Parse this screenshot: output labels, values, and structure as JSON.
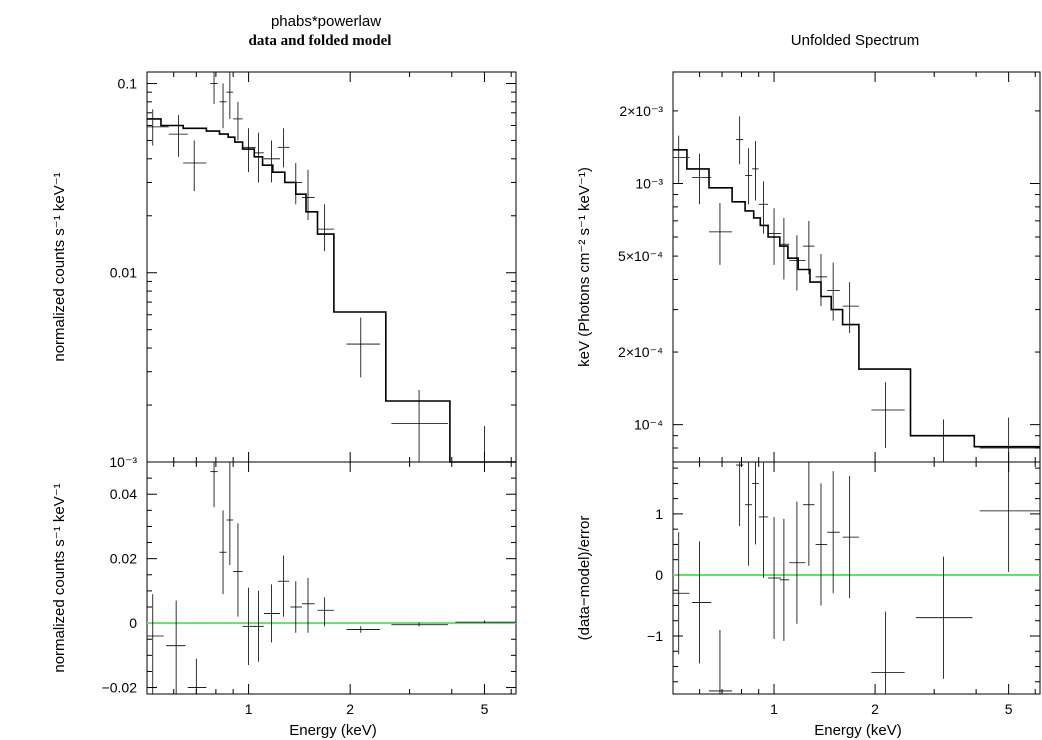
{
  "chart_data": [
    {
      "type": "line",
      "panel": "top-left",
      "title": "phabs*powerlaw",
      "subtitle": "data and folded model",
      "xlabel": "",
      "ylabel": "normalized counts s⁻¹ keV⁻¹",
      "xscale": "log",
      "yscale": "log",
      "xlim": [
        0.5,
        6.2
      ],
      "ylim": [
        0.001,
        0.115
      ],
      "y_ticks": [
        {
          "value": 0.1,
          "label": "0.1"
        },
        {
          "value": 0.01,
          "label": "0.01"
        },
        {
          "value": 0.001,
          "label": "10⁻³"
        }
      ],
      "data": [
        {
          "x": 0.52,
          "xlo": 0.5,
          "xhi": 0.58,
          "y": 0.059,
          "ylo": 0.047,
          "yhi": 0.073
        },
        {
          "x": 0.62,
          "xlo": 0.58,
          "xhi": 0.66,
          "y": 0.054,
          "ylo": 0.041,
          "yhi": 0.068
        },
        {
          "x": 0.69,
          "xlo": 0.64,
          "xhi": 0.75,
          "y": 0.038,
          "ylo": 0.027,
          "yhi": 0.05
        },
        {
          "x": 0.79,
          "xlo": 0.77,
          "xhi": 0.81,
          "y": 0.1,
          "ylo": 0.078,
          "yhi": 0.115
        },
        {
          "x": 0.84,
          "xlo": 0.82,
          "xhi": 0.86,
          "y": 0.08,
          "ylo": 0.058,
          "yhi": 0.1
        },
        {
          "x": 0.88,
          "xlo": 0.86,
          "xhi": 0.9,
          "y": 0.09,
          "ylo": 0.065,
          "yhi": 0.115
        },
        {
          "x": 0.93,
          "xlo": 0.9,
          "xhi": 0.96,
          "y": 0.065,
          "ylo": 0.05,
          "yhi": 0.08
        },
        {
          "x": 1.0,
          "xlo": 0.96,
          "xhi": 1.05,
          "y": 0.046,
          "ylo": 0.034,
          "yhi": 0.058
        },
        {
          "x": 1.07,
          "xlo": 1.04,
          "xhi": 1.11,
          "y": 0.043,
          "ylo": 0.03,
          "yhi": 0.055
        },
        {
          "x": 1.17,
          "xlo": 1.11,
          "xhi": 1.24,
          "y": 0.04,
          "ylo": 0.03,
          "yhi": 0.05
        },
        {
          "x": 1.27,
          "xlo": 1.22,
          "xhi": 1.32,
          "y": 0.046,
          "ylo": 0.036,
          "yhi": 0.058
        },
        {
          "x": 1.38,
          "xlo": 1.33,
          "xhi": 1.44,
          "y": 0.03,
          "ylo": 0.023,
          "yhi": 0.038
        },
        {
          "x": 1.5,
          "xlo": 1.44,
          "xhi": 1.57,
          "y": 0.025,
          "ylo": 0.019,
          "yhi": 0.035
        },
        {
          "x": 1.68,
          "xlo": 1.6,
          "xhi": 1.79,
          "y": 0.017,
          "ylo": 0.013,
          "yhi": 0.023
        },
        {
          "x": 2.15,
          "xlo": 1.95,
          "xhi": 2.45,
          "y": 0.0042,
          "ylo": 0.0028,
          "yhi": 0.0058
        },
        {
          "x": 3.2,
          "xlo": 2.65,
          "xhi": 3.9,
          "y": 0.0016,
          "ylo": 0.0009,
          "yhi": 0.0024
        },
        {
          "x": 5.0,
          "xlo": 4.1,
          "xhi": 6.2,
          "y": 0.001,
          "ylo": 0.001,
          "yhi": 0.00155
        }
      ],
      "model_steps": [
        {
          "x0": 0.5,
          "x1": 0.55,
          "y": 0.065
        },
        {
          "x0": 0.55,
          "x1": 0.64,
          "y": 0.06
        },
        {
          "x0": 0.64,
          "x1": 0.75,
          "y": 0.058
        },
        {
          "x0": 0.75,
          "x1": 0.82,
          "y": 0.056
        },
        {
          "x0": 0.82,
          "x1": 0.87,
          "y": 0.054
        },
        {
          "x0": 0.87,
          "x1": 0.91,
          "y": 0.052
        },
        {
          "x0": 0.91,
          "x1": 0.96,
          "y": 0.049
        },
        {
          "x0": 0.96,
          "x1": 1.04,
          "y": 0.045
        },
        {
          "x0": 1.04,
          "x1": 1.1,
          "y": 0.041
        },
        {
          "x0": 1.1,
          "x1": 1.18,
          "y": 0.037
        },
        {
          "x0": 1.18,
          "x1": 1.28,
          "y": 0.034
        },
        {
          "x0": 1.28,
          "x1": 1.38,
          "y": 0.03
        },
        {
          "x0": 1.38,
          "x1": 1.48,
          "y": 0.026
        },
        {
          "x0": 1.48,
          "x1": 1.6,
          "y": 0.021
        },
        {
          "x0": 1.6,
          "x1": 1.79,
          "y": 0.016
        },
        {
          "x0": 1.79,
          "x1": 2.55,
          "y": 0.0062
        },
        {
          "x0": 2.55,
          "x1": 3.95,
          "y": 0.0021
        },
        {
          "x0": 3.95,
          "x1": 6.2,
          "y": 0.001
        }
      ]
    },
    {
      "type": "line",
      "panel": "bottom-left",
      "xlabel": "Energy (keV)",
      "ylabel": "normalized counts s⁻¹ keV⁻¹",
      "xscale": "log",
      "yscale": "linear",
      "xlim": [
        0.5,
        6.2
      ],
      "ylim": [
        -0.022,
        0.05
      ],
      "x_ticks": [
        {
          "value": 1,
          "label": "1"
        },
        {
          "value": 2,
          "label": "2"
        },
        {
          "value": 5,
          "label": "5"
        }
      ],
      "y_ticks": [
        {
          "value": 0.04,
          "label": "0.04"
        },
        {
          "value": 0.02,
          "label": "0.02"
        },
        {
          "value": 0,
          "label": "0"
        },
        {
          "value": -0.02,
          "label": "−0.02"
        }
      ],
      "zero_line": 0,
      "data": [
        {
          "x": 0.52,
          "xlo": 0.5,
          "xhi": 0.56,
          "y": -0.004,
          "ylo": -0.022,
          "yhi": 0.009
        },
        {
          "x": 0.61,
          "xlo": 0.57,
          "xhi": 0.65,
          "y": -0.007,
          "ylo": -0.022,
          "yhi": 0.007
        },
        {
          "x": 0.7,
          "xlo": 0.66,
          "xhi": 0.75,
          "y": -0.02,
          "ylo": -0.022,
          "yhi": -0.011
        },
        {
          "x": 0.79,
          "xlo": 0.77,
          "xhi": 0.81,
          "y": 0.047,
          "ylo": 0.036,
          "yhi": 0.05
        },
        {
          "x": 0.84,
          "xlo": 0.82,
          "xhi": 0.86,
          "y": 0.022,
          "ylo": 0.009,
          "yhi": 0.035
        },
        {
          "x": 0.88,
          "xlo": 0.86,
          "xhi": 0.9,
          "y": 0.032,
          "ylo": 0.018,
          "yhi": 0.05
        },
        {
          "x": 0.93,
          "xlo": 0.9,
          "xhi": 0.96,
          "y": 0.016,
          "ylo": 0.002,
          "yhi": 0.031
        },
        {
          "x": 1.0,
          "xlo": 0.96,
          "xhi": 1.05,
          "y": -0.001,
          "ylo": -0.013,
          "yhi": 0.011
        },
        {
          "x": 1.07,
          "xlo": 1.04,
          "xhi": 1.11,
          "y": -0.001,
          "ylo": -0.012,
          "yhi": 0.01
        },
        {
          "x": 1.17,
          "xlo": 1.11,
          "xhi": 1.24,
          "y": 0.003,
          "ylo": -0.006,
          "yhi": 0.012
        },
        {
          "x": 1.27,
          "xlo": 1.22,
          "xhi": 1.32,
          "y": 0.013,
          "ylo": 0.002,
          "yhi": 0.021
        },
        {
          "x": 1.38,
          "xlo": 1.33,
          "xhi": 1.44,
          "y": 0.005,
          "ylo": -0.003,
          "yhi": 0.013
        },
        {
          "x": 1.5,
          "xlo": 1.44,
          "xhi": 1.57,
          "y": 0.006,
          "ylo": -0.003,
          "yhi": 0.014
        },
        {
          "x": 1.68,
          "xlo": 1.6,
          "xhi": 1.79,
          "y": 0.004,
          "ylo": -0.001,
          "yhi": 0.008
        },
        {
          "x": 2.15,
          "xlo": 1.95,
          "xhi": 2.45,
          "y": -0.002,
          "ylo": -0.003,
          "yhi": -0.001
        },
        {
          "x": 3.2,
          "xlo": 2.65,
          "xhi": 3.9,
          "y": -0.0005,
          "ylo": -0.001,
          "yhi": 0.0002
        },
        {
          "x": 5.0,
          "xlo": 4.1,
          "xhi": 6.2,
          "y": 0.0003,
          "ylo": 0.0,
          "yhi": 0.0008
        }
      ]
    },
    {
      "type": "line",
      "panel": "top-right",
      "title": "Unfolded Spectrum",
      "xlabel": "",
      "ylabel": "keV (Photons cm⁻² s⁻¹ keV⁻¹)",
      "xscale": "log",
      "yscale": "log",
      "xlim": [
        0.5,
        6.2
      ],
      "ylim": [
        7e-05,
        0.0029
      ],
      "y_ticks": [
        {
          "value": 0.002,
          "label": "2×10⁻³"
        },
        {
          "value": 0.001,
          "label": "10⁻³"
        },
        {
          "value": 0.0005,
          "label": "5×10⁻⁴"
        },
        {
          "value": 0.0002,
          "label": "2×10⁻⁴"
        },
        {
          "value": 0.0001,
          "label": "10⁻⁴"
        }
      ],
      "data": [
        {
          "x": 0.52,
          "xlo": 0.5,
          "xhi": 0.56,
          "y": 0.00128,
          "ylo": 0.001,
          "yhi": 0.00158
        },
        {
          "x": 0.6,
          "xlo": 0.57,
          "xhi": 0.65,
          "y": 0.00106,
          "ylo": 0.00082,
          "yhi": 0.00133
        },
        {
          "x": 0.69,
          "xlo": 0.64,
          "xhi": 0.75,
          "y": 0.00063,
          "ylo": 0.00046,
          "yhi": 0.00083
        },
        {
          "x": 0.79,
          "xlo": 0.77,
          "xhi": 0.81,
          "y": 0.00152,
          "ylo": 0.0012,
          "yhi": 0.0019
        },
        {
          "x": 0.84,
          "xlo": 0.82,
          "xhi": 0.86,
          "y": 0.00108,
          "ylo": 0.00082,
          "yhi": 0.0014
        },
        {
          "x": 0.88,
          "xlo": 0.86,
          "xhi": 0.9,
          "y": 0.00115,
          "ylo": 0.00085,
          "yhi": 0.0015
        },
        {
          "x": 0.93,
          "xlo": 0.9,
          "xhi": 0.96,
          "y": 0.00082,
          "ylo": 0.00062,
          "yhi": 0.00102
        },
        {
          "x": 1.0,
          "xlo": 0.96,
          "xhi": 1.05,
          "y": 0.00062,
          "ylo": 0.00046,
          "yhi": 0.00079
        },
        {
          "x": 1.07,
          "xlo": 1.04,
          "xhi": 1.11,
          "y": 0.00056,
          "ylo": 0.0004,
          "yhi": 0.00072
        },
        {
          "x": 1.17,
          "xlo": 1.11,
          "xhi": 1.24,
          "y": 0.00048,
          "ylo": 0.00036,
          "yhi": 0.00061
        },
        {
          "x": 1.27,
          "xlo": 1.22,
          "xhi": 1.32,
          "y": 0.00055,
          "ylo": 0.00042,
          "yhi": 0.0007
        },
        {
          "x": 1.38,
          "xlo": 1.33,
          "xhi": 1.44,
          "y": 0.00041,
          "ylo": 0.00031,
          "yhi": 0.00051
        },
        {
          "x": 1.5,
          "xlo": 1.44,
          "xhi": 1.57,
          "y": 0.00036,
          "ylo": 0.00027,
          "yhi": 0.00047
        },
        {
          "x": 1.68,
          "xlo": 1.6,
          "xhi": 1.79,
          "y": 0.00031,
          "ylo": 0.00024,
          "yhi": 0.00039
        },
        {
          "x": 2.15,
          "xlo": 1.95,
          "xhi": 2.45,
          "y": 0.000115,
          "ylo": 8e-05,
          "yhi": 0.00015
        },
        {
          "x": 3.2,
          "xlo": 2.65,
          "xhi": 3.9,
          "y": 9e-05,
          "ylo": 7e-05,
          "yhi": 0.000105
        },
        {
          "x": 5.0,
          "xlo": 4.1,
          "xhi": 6.2,
          "y": 8e-05,
          "ylo": 7e-05,
          "yhi": 0.000107
        }
      ],
      "model_steps": [
        {
          "x0": 0.5,
          "x1": 0.55,
          "y": 0.00138
        },
        {
          "x0": 0.55,
          "x1": 0.64,
          "y": 0.00115
        },
        {
          "x0": 0.64,
          "x1": 0.75,
          "y": 0.00096
        },
        {
          "x0": 0.75,
          "x1": 0.82,
          "y": 0.00084
        },
        {
          "x0": 0.82,
          "x1": 0.87,
          "y": 0.00077
        },
        {
          "x0": 0.87,
          "x1": 0.91,
          "y": 0.00072
        },
        {
          "x0": 0.91,
          "x1": 0.96,
          "y": 0.00067
        },
        {
          "x0": 0.96,
          "x1": 1.04,
          "y": 0.0006
        },
        {
          "x0": 1.04,
          "x1": 1.1,
          "y": 0.00055
        },
        {
          "x0": 1.1,
          "x1": 1.18,
          "y": 0.00049
        },
        {
          "x0": 1.18,
          "x1": 1.28,
          "y": 0.00044
        },
        {
          "x0": 1.28,
          "x1": 1.38,
          "y": 0.00039
        },
        {
          "x0": 1.38,
          "x1": 1.48,
          "y": 0.00034
        },
        {
          "x0": 1.48,
          "x1": 1.6,
          "y": 0.0003
        },
        {
          "x0": 1.6,
          "x1": 1.79,
          "y": 0.00026
        },
        {
          "x0": 1.79,
          "x1": 2.55,
          "y": 0.00017
        },
        {
          "x0": 2.55,
          "x1": 3.95,
          "y": 9e-05
        },
        {
          "x0": 3.95,
          "x1": 6.2,
          "y": 8.1e-05
        }
      ]
    },
    {
      "type": "line",
      "panel": "bottom-right",
      "xlabel": "Energy (keV)",
      "ylabel": "(data−model)/error",
      "xscale": "log",
      "yscale": "linear",
      "xlim": [
        0.5,
        6.2
      ],
      "ylim": [
        -1.95,
        1.85
      ],
      "x_ticks": [
        {
          "value": 1,
          "label": "1"
        },
        {
          "value": 2,
          "label": "2"
        },
        {
          "value": 5,
          "label": "5"
        }
      ],
      "y_ticks": [
        {
          "value": 1,
          "label": "1"
        },
        {
          "value": 0,
          "label": "0"
        },
        {
          "value": -1,
          "label": "−1"
        }
      ],
      "zero_line": 0,
      "data": [
        {
          "x": 0.52,
          "xlo": 0.5,
          "xhi": 0.56,
          "y": -0.3,
          "ylo": -1.3,
          "yhi": 0.7
        },
        {
          "x": 0.6,
          "xlo": 0.57,
          "xhi": 0.65,
          "y": -0.45,
          "ylo": -1.45,
          "yhi": 0.55
        },
        {
          "x": 0.69,
          "xlo": 0.64,
          "xhi": 0.75,
          "y": -1.9,
          "ylo": -1.95,
          "yhi": -0.9
        },
        {
          "x": 0.79,
          "xlo": 0.77,
          "xhi": 0.81,
          "y": 1.8,
          "ylo": 0.8,
          "yhi": 1.85
        },
        {
          "x": 0.84,
          "xlo": 0.82,
          "xhi": 0.86,
          "y": 1.15,
          "ylo": 0.15,
          "yhi": 1.85
        },
        {
          "x": 0.88,
          "xlo": 0.86,
          "xhi": 0.9,
          "y": 1.5,
          "ylo": 0.5,
          "yhi": 1.85
        },
        {
          "x": 0.93,
          "xlo": 0.9,
          "xhi": 0.96,
          "y": 0.95,
          "ylo": -0.05,
          "yhi": 1.85
        },
        {
          "x": 1.0,
          "xlo": 0.96,
          "xhi": 1.05,
          "y": -0.05,
          "ylo": -1.05,
          "yhi": 0.95
        },
        {
          "x": 1.07,
          "xlo": 1.04,
          "xhi": 1.11,
          "y": -0.08,
          "ylo": -1.08,
          "yhi": 0.92
        },
        {
          "x": 1.17,
          "xlo": 1.11,
          "xhi": 1.24,
          "y": 0.2,
          "ylo": -0.8,
          "yhi": 1.2
        },
        {
          "x": 1.27,
          "xlo": 1.22,
          "xhi": 1.32,
          "y": 1.15,
          "ylo": 0.15,
          "yhi": 1.85
        },
        {
          "x": 1.38,
          "xlo": 1.33,
          "xhi": 1.44,
          "y": 0.5,
          "ylo": -0.5,
          "yhi": 1.5
        },
        {
          "x": 1.5,
          "xlo": 1.44,
          "xhi": 1.57,
          "y": 0.7,
          "ylo": -0.3,
          "yhi": 1.7
        },
        {
          "x": 1.68,
          "xlo": 1.6,
          "xhi": 1.79,
          "y": 0.62,
          "ylo": -0.38,
          "yhi": 1.62
        },
        {
          "x": 2.15,
          "xlo": 1.95,
          "xhi": 2.45,
          "y": -1.6,
          "ylo": -1.95,
          "yhi": -0.6
        },
        {
          "x": 3.2,
          "xlo": 2.65,
          "xhi": 3.9,
          "y": -0.7,
          "ylo": -1.7,
          "yhi": 0.3
        },
        {
          "x": 5.0,
          "xlo": 4.1,
          "xhi": 6.2,
          "y": 1.05,
          "ylo": 0.05,
          "yhi": 1.85
        }
      ]
    }
  ]
}
